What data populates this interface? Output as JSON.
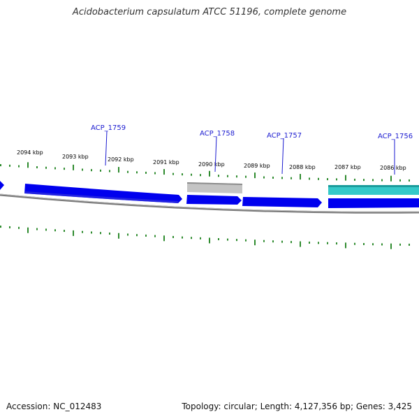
{
  "title": "Acidobacterium capsulatum ATCC 51196, complete genome",
  "footer": {
    "accession": "Accession: NC_012483",
    "summary": "Topology: circular; Length: 4,127,356 bp; Genes: 3,425"
  },
  "colors": {
    "tick": "#2e8b2e",
    "gene_forward": "#0000ee",
    "gene_pseudo": "#b8b8b8",
    "gene_rna": "#2ec4c4",
    "backbone": "#888888",
    "label": "#1a1ad0"
  },
  "scale": {
    "tick_labels": [
      "2094 kbp",
      "2093 kbp",
      "2092 kbp",
      "2091 kbp",
      "2090 kbp",
      "2089 kbp",
      "2088 kbp",
      "2087 kbp",
      "2086 kbp"
    ]
  },
  "genes": [
    {
      "name": "ACP_1759",
      "type": "CDS"
    },
    {
      "name": "ACP_1758",
      "type": "pseudo"
    },
    {
      "name": "ACP_1757",
      "type": "CDS"
    },
    {
      "name": "ACP_1756",
      "type": "RNA"
    }
  ]
}
